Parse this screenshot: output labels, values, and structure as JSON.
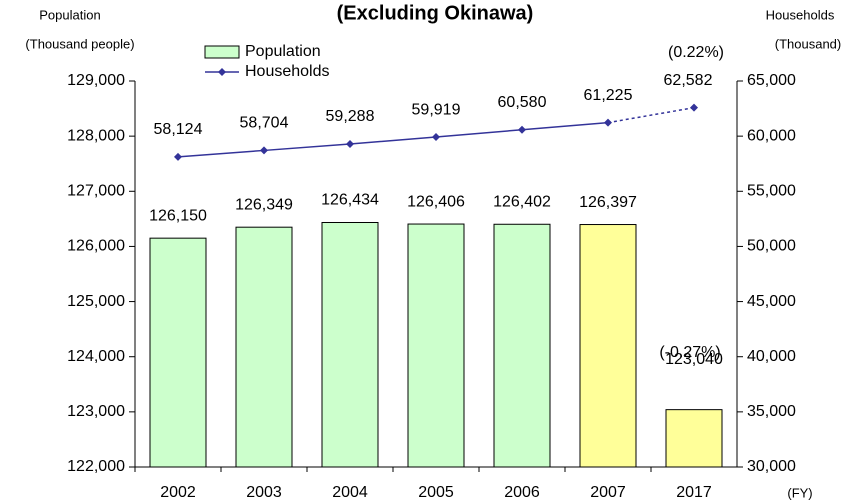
{
  "chart_data": {
    "type": "bar_line",
    "title": "(Excluding Okinawa)",
    "y_label": [
      "Population",
      "(Thousand people)"
    ],
    "y2_label": [
      "Households",
      "(Thousand)"
    ],
    "x_label": "(FY)",
    "categories": [
      "2002",
      "2003",
      "2004",
      "2005",
      "2006",
      "2007",
      "2017"
    ],
    "series": [
      {
        "name": "Population",
        "type": "bar",
        "color": "#ccffcc",
        "colors": [
          "#ccffcc",
          "#ccffcc",
          "#ccffcc",
          "#ccffcc",
          "#ccffcc",
          "#ffff99",
          "#ffff99"
        ],
        "values": [
          126150,
          126349,
          126434,
          126406,
          126402,
          126397,
          123040
        ],
        "value_labels": [
          "126,150",
          "126,349",
          "126,434",
          "126,406",
          "126,402",
          "126,397",
          "123,040"
        ]
      },
      {
        "name": "Households",
        "type": "line",
        "axis": "y2",
        "color": "#333399",
        "dashed_last_segment": true,
        "values": [
          58124,
          58704,
          59288,
          59919,
          60580,
          61225,
          62582
        ],
        "value_labels": [
          "58,124",
          "58,704",
          "59,288",
          "59,919",
          "60,580",
          "61,225",
          "62,582"
        ]
      }
    ],
    "annotations": [
      "(0.22%)",
      "(-0.27%)"
    ],
    "ylim": [
      122000,
      129000
    ],
    "yticks": [
      {
        "value": 122000,
        "label": "122,000"
      },
      {
        "value": 123000,
        "label": "123,000"
      },
      {
        "value": 124000,
        "label": "124,000"
      },
      {
        "value": 125000,
        "label": "125,000"
      },
      {
        "value": 126000,
        "label": "126,000"
      },
      {
        "value": 127000,
        "label": "127,000"
      },
      {
        "value": 128000,
        "label": "128,000"
      },
      {
        "value": 129000,
        "label": "129,000"
      }
    ],
    "y2lim": [
      30000,
      65000
    ],
    "y2ticks": [
      {
        "value": 30000,
        "label": "30,000"
      },
      {
        "value": 35000,
        "label": "35,000"
      },
      {
        "value": 40000,
        "label": "40,000"
      },
      {
        "value": 45000,
        "label": "45,000"
      },
      {
        "value": 50000,
        "label": "50,000"
      },
      {
        "value": 55000,
        "label": "55,000"
      },
      {
        "value": 60000,
        "label": "60,000"
      },
      {
        "value": 65000,
        "label": "65,000"
      }
    ]
  }
}
